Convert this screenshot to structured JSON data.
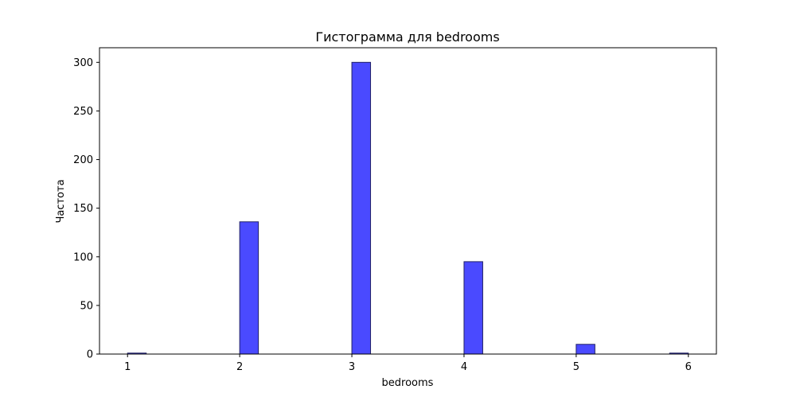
{
  "chart_data": {
    "type": "bar",
    "title": "Гистограмма для bedrooms",
    "xlabel": "bedrooms",
    "ylabel": "Частота",
    "xlim": [
      0.75,
      6.25
    ],
    "ylim": [
      0,
      315
    ],
    "xticks": [
      "1",
      "2",
      "3",
      "4",
      "5",
      "6"
    ],
    "xtick_values": [
      1,
      2,
      3,
      4,
      5,
      6
    ],
    "yticks": [
      "0",
      "50",
      "100",
      "150",
      "200",
      "250",
      "300"
    ],
    "ytick_values": [
      0,
      50,
      100,
      150,
      200,
      250,
      300
    ],
    "bins": [
      {
        "x0": 1.0,
        "x1": 1.1667,
        "value": 1
      },
      {
        "x0": 2.0,
        "x1": 2.1667,
        "value": 136
      },
      {
        "x0": 3.0,
        "x1": 3.1667,
        "value": 300
      },
      {
        "x0": 4.0,
        "x1": 4.1667,
        "value": 95
      },
      {
        "x0": 5.0,
        "x1": 5.1667,
        "value": 10
      },
      {
        "x0": 5.8333,
        "x1": 6.0,
        "value": 1
      }
    ],
    "bar_color": "#4a4aff",
    "bar_edge_color": "#222266",
    "grid": false,
    "legend": "none"
  }
}
